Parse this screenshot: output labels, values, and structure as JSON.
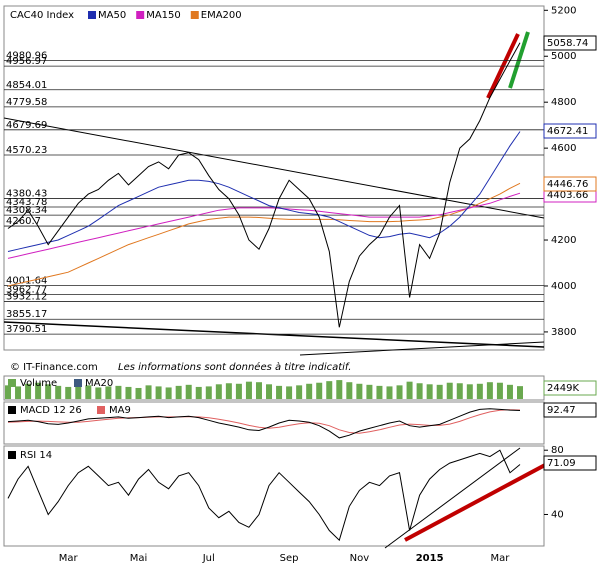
{
  "chart_data": [
    {
      "type": "line",
      "title": "CAC40 Index",
      "series": [
        {
          "name": "CAC40 Index",
          "color": "#000000",
          "values": [
            4250,
            4280,
            4330,
            4260,
            4180,
            4240,
            4300,
            4360,
            4400,
            4420,
            4460,
            4490,
            4440,
            4480,
            4520,
            4540,
            4510,
            4570,
            4580,
            4550,
            4480,
            4420,
            4380,
            4310,
            4200,
            4160,
            4250,
            4380,
            4460,
            4420,
            4380,
            4300,
            4150,
            3820,
            4020,
            4130,
            4180,
            4220,
            4300,
            4350,
            3950,
            4180,
            4120,
            4230,
            4450,
            4600,
            4640,
            4720,
            4820,
            4900,
            4980,
            5058.74
          ]
        },
        {
          "name": "MA50",
          "color": "#1f2fb0",
          "values": [
            4150,
            4160,
            4170,
            4180,
            4190,
            4200,
            4220,
            4240,
            4260,
            4290,
            4320,
            4350,
            4370,
            4390,
            4410,
            4430,
            4440,
            4450,
            4460,
            4460,
            4455,
            4445,
            4430,
            4410,
            4390,
            4370,
            4350,
            4340,
            4330,
            4320,
            4315,
            4310,
            4300,
            4280,
            4260,
            4240,
            4220,
            4210,
            4215,
            4225,
            4230,
            4220,
            4210,
            4230,
            4260,
            4300,
            4350,
            4400,
            4470,
            4540,
            4610,
            4672.41
          ]
        },
        {
          "name": "MA150",
          "color": "#d020c0",
          "values": [
            4120,
            4130,
            4140,
            4150,
            4160,
            4170,
            4180,
            4190,
            4200,
            4210,
            4220,
            4230,
            4240,
            4250,
            4260,
            4270,
            4280,
            4290,
            4300,
            4310,
            4320,
            4330,
            4335,
            4340,
            4340,
            4340,
            4340,
            4338,
            4335,
            4332,
            4330,
            4325,
            4320,
            4315,
            4310,
            4305,
            4300,
            4300,
            4300,
            4300,
            4300,
            4300,
            4305,
            4310,
            4320,
            4330,
            4340,
            4350,
            4360,
            4375,
            4390,
            4403.66
          ]
        },
        {
          "name": "EMA200",
          "color": "#e07820",
          "values": [
            4000,
            4010,
            4020,
            4030,
            4040,
            4050,
            4060,
            4080,
            4100,
            4120,
            4140,
            4160,
            4180,
            4195,
            4210,
            4225,
            4240,
            4255,
            4270,
            4280,
            4290,
            4295,
            4300,
            4300,
            4300,
            4298,
            4295,
            4292,
            4290,
            4290,
            4290,
            4290,
            4290,
            4288,
            4285,
            4283,
            4280,
            4280,
            4280,
            4282,
            4285,
            4287,
            4290,
            4300,
            4310,
            4325,
            4340,
            4360,
            4380,
            4400,
            4425,
            4446.76
          ]
        }
      ],
      "levels": [
        4980.96,
        4956.97,
        4854.01,
        4779.58,
        4679.69,
        4570.23,
        4380.43,
        4343.78,
        4308.34,
        4260.7,
        4001.64,
        3962.77,
        3932.12,
        3855.17,
        3790.51
      ],
      "ylim": [
        3730,
        5210
      ],
      "yticks": [
        3800,
        4000,
        4200,
        4400,
        4600,
        4800,
        5000,
        5200
      ],
      "annotations": [
        "© IT-Finance.com",
        "Les informations sont données à titre indicatif."
      ]
    },
    {
      "type": "bar",
      "title": "Volume",
      "series": [
        {
          "name": "Volume",
          "color": "#6aa84f",
          "values": [
            2600,
            2400,
            2900,
            3100,
            2800,
            2500,
            2300,
            2700,
            2600,
            2200,
            2400,
            2500,
            2300,
            2100,
            2600,
            2400,
            2200,
            2500,
            2700,
            2300,
            2400,
            2800,
            3000,
            2900,
            3300,
            3200,
            2800,
            2500,
            2400,
            2600,
            2900,
            3100,
            3400,
            3600,
            3200,
            2900,
            2700,
            2500,
            2400,
            2600,
            3300,
            3000,
            2800,
            2700,
            3100,
            3000,
            2800,
            2900,
            3200,
            3100,
            2700,
            2449
          ]
        },
        {
          "name": "MA20",
          "color": "#3d5a80"
        }
      ],
      "last_label": "2449K",
      "ylim": [
        0,
        4000
      ]
    },
    {
      "type": "line",
      "title": "MACD 12 26",
      "series": [
        {
          "name": "MACD 12 26",
          "color": "#000000",
          "values": [
            10,
            15,
            20,
            10,
            -5,
            -10,
            0,
            15,
            30,
            35,
            40,
            45,
            35,
            40,
            45,
            50,
            40,
            45,
            50,
            40,
            20,
            0,
            -15,
            -30,
            -50,
            -55,
            -30,
            0,
            20,
            15,
            5,
            -20,
            -60,
            -110,
            -90,
            -60,
            -40,
            -20,
            0,
            15,
            -20,
            -30,
            -20,
            -10,
            20,
            50,
            80,
            100,
            105,
            100,
            95,
            92.47
          ]
        },
        {
          "name": "MA9",
          "color": "#e06060",
          "values": [
            5,
            8,
            12,
            14,
            12,
            8,
            5,
            6,
            12,
            20,
            28,
            35,
            38,
            40,
            42,
            45,
            45,
            45,
            46,
            45,
            38,
            28,
            15,
            0,
            -18,
            -32,
            -38,
            -32,
            -18,
            -5,
            2,
            -2,
            -20,
            -50,
            -70,
            -75,
            -65,
            -50,
            -32,
            -15,
            -8,
            -12,
            -18,
            -18,
            -8,
            12,
            38,
            62,
            82,
            94,
            98,
            96
          ]
        }
      ],
      "ylim": [
        -140,
        140
      ]
    },
    {
      "type": "line",
      "title": "RSI 14",
      "categories": [
        null,
        null,
        null,
        null,
        null,
        null,
        "Mar",
        null,
        null,
        null,
        null,
        null,
        null,
        "Mai",
        null,
        null,
        null,
        null,
        null,
        null,
        "Jul",
        null,
        null,
        null,
        null,
        null,
        null,
        null,
        "Sep",
        null,
        null,
        null,
        null,
        null,
        null,
        "Nov",
        null,
        null,
        null,
        null,
        null,
        null,
        "2015",
        null,
        null,
        null,
        null,
        null,
        null,
        "Mar",
        null,
        null
      ],
      "series": [
        {
          "name": "RSI 14",
          "color": "#000000",
          "values": [
            50,
            62,
            70,
            55,
            40,
            48,
            58,
            66,
            70,
            64,
            58,
            60,
            52,
            62,
            68,
            60,
            56,
            64,
            66,
            58,
            44,
            38,
            42,
            35,
            32,
            40,
            58,
            66,
            60,
            54,
            48,
            40,
            30,
            24,
            45,
            55,
            60,
            58,
            64,
            66,
            30,
            52,
            62,
            68,
            72,
            74,
            76,
            78,
            76,
            80,
            66,
            71.09
          ]
        }
      ],
      "ylim": [
        21,
        82
      ],
      "yticks": [
        40,
        80
      ]
    }
  ]
}
